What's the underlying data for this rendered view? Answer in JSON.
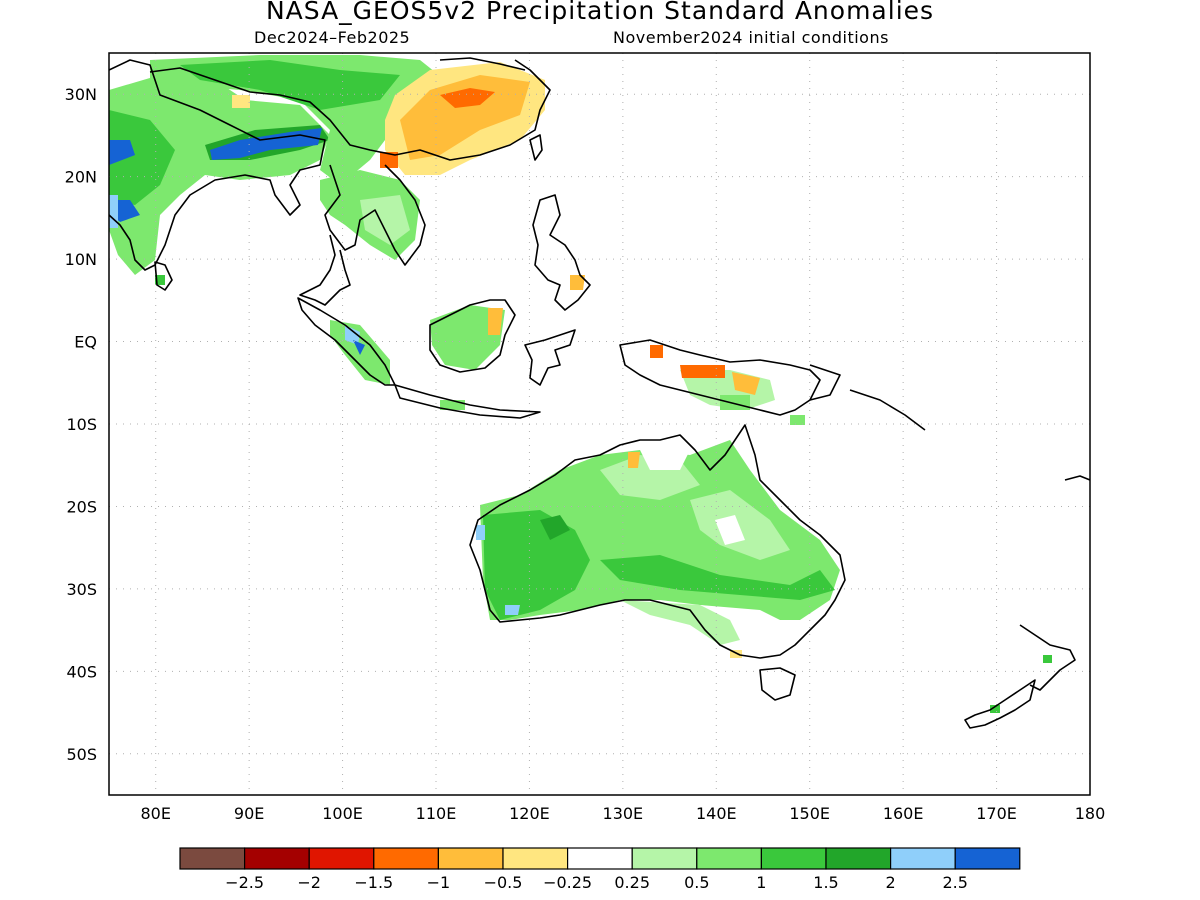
{
  "title": "NASA_GEOS5v2 Precipitation Standard Anomalies",
  "period": "Dec2024–Feb2025",
  "initial_conditions": "November2024 initial conditions",
  "map": {
    "region": "Indian Ocean / Maritime Continent / Australia / West Pacific",
    "lon_range": [
      75,
      180
    ],
    "lat_range": [
      -55,
      35
    ],
    "grid": "dotted",
    "lon_ticks": [
      "80E",
      "90E",
      "100E",
      "110E",
      "120E",
      "130E",
      "140E",
      "150E",
      "160E",
      "170E",
      "180"
    ],
    "lat_ticks": [
      "30N",
      "20N",
      "10N",
      "EQ",
      "10S",
      "20S",
      "30S",
      "40S",
      "50S"
    ]
  },
  "colorbar": {
    "colors": [
      "#7b4a3f",
      "#a40000",
      "#e01500",
      "#ff6a00",
      "#ffbd3a",
      "#ffe680",
      "#ffffff",
      "#b5f5a8",
      "#7de86e",
      "#3ac83c",
      "#22a62a",
      "#8fcffa",
      "#1563d4"
    ],
    "labels": [
      "−2.5",
      "−2",
      "−1.5",
      "−1",
      "−0.5",
      "−0.25",
      "0.25",
      "0.5",
      "1",
      "1.5",
      "2",
      "2.5"
    ]
  },
  "colors": {
    "positive_light": "#b5f5a8",
    "positive": "#7de86e",
    "positive_mid": "#3ac83c",
    "positive_strong": "#22a62a",
    "wet_extreme": "#8fcffa",
    "wet_max": "#1563d4",
    "dry_light": "#ffe680",
    "dry": "#ffbd3a",
    "dry_mid": "#ff6a00",
    "dry_strong": "#e01500",
    "coast": "#000000"
  }
}
